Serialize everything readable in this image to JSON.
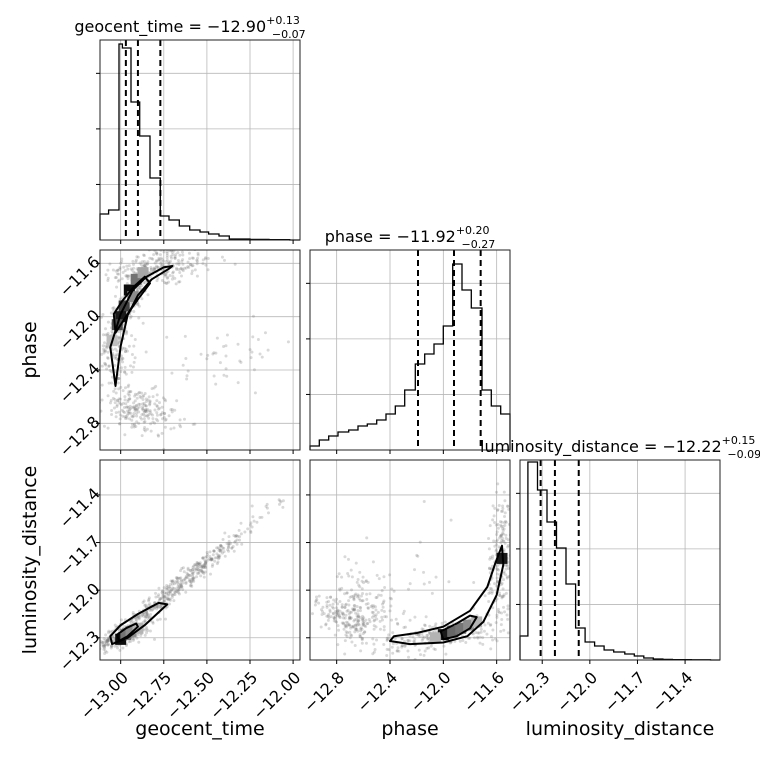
{
  "chart_data": {
    "type": "corner",
    "parameters": [
      "geocent_time",
      "phase",
      "luminosity_distance"
    ],
    "axis_labels": {
      "geocent_time": "geocent_time",
      "phase": "phase",
      "luminosity_distance": "luminosity_distance"
    },
    "titles": [
      {
        "param": "geocent_time",
        "prefix": "geocent_time = ",
        "median": "−12.90",
        "plus": "+0.13",
        "minus": "−0.07"
      },
      {
        "param": "phase",
        "prefix": "phase = ",
        "median": "−11.92",
        "plus": "+0.20",
        "minus": "−0.27"
      },
      {
        "param": "luminosity_distance",
        "prefix": "luminosity_distance = ",
        "median": "−12.22",
        "plus": "+0.15",
        "minus": "−0.09"
      }
    ],
    "ranges": {
      "geocent_time": [
        -13.12,
        -11.96
      ],
      "phase": [
        -13.0,
        -11.5
      ],
      "luminosity_distance": [
        -12.44,
        -11.18
      ]
    },
    "ticks": {
      "geocent_time": {
        "values": [
          -13.0,
          -12.75,
          -12.5,
          -12.25,
          -12.0
        ],
        "labels": [
          "−13.00",
          "−12.75",
          "−12.50",
          "−12.25",
          "−12.00"
        ]
      },
      "phase": {
        "values": [
          -12.8,
          -12.4,
          -12.0,
          -11.6
        ],
        "labels": [
          "−12.8",
          "−12.4",
          "−12.0",
          "−11.6"
        ]
      },
      "luminosity_distance": {
        "values": [
          -12.3,
          -12.0,
          -11.7,
          -11.4
        ],
        "labels": [
          "−12.3",
          "−12.0",
          "−11.7",
          "−11.4"
        ]
      }
    },
    "quantiles": {
      "geocent_time": [
        -12.97,
        -12.9,
        -12.77
      ],
      "phase": [
        -12.19,
        -11.92,
        -11.72
      ],
      "luminosity_distance": [
        -12.31,
        -12.22,
        -12.07
      ]
    },
    "histograms": {
      "geocent_time": {
        "edges": [
          -13.12,
          -13.07,
          -13.01,
          -12.99,
          -12.94,
          -12.89,
          -12.83,
          -12.77,
          -12.72,
          -12.66,
          -12.6,
          -12.54,
          -12.49,
          -12.43,
          -12.37,
          -12.31,
          -12.25,
          -12.2,
          -12.14,
          -12.08,
          -12.02,
          -11.96
        ],
        "counts": [
          0.13,
          0.15,
          0.98,
          0.96,
          0.69,
          0.52,
          0.31,
          0.12,
          0.1,
          0.07,
          0.05,
          0.04,
          0.03,
          0.02,
          0.005,
          0.005,
          0.003,
          0.003,
          0.002,
          0.002,
          0
        ]
      },
      "phase": {
        "edges": [
          -13.0,
          -12.93,
          -12.86,
          -12.79,
          -12.71,
          -12.64,
          -12.57,
          -12.5,
          -12.43,
          -12.36,
          -12.29,
          -12.21,
          -12.14,
          -12.07,
          -12.0,
          -11.93,
          -11.86,
          -11.79,
          -11.71,
          -11.64,
          -11.57,
          -11.5
        ],
        "counts": [
          0.02,
          0.05,
          0.07,
          0.09,
          0.1,
          0.12,
          0.13,
          0.15,
          0.18,
          0.22,
          0.3,
          0.43,
          0.48,
          0.53,
          0.62,
          0.93,
          0.8,
          0.71,
          0.3,
          0.22,
          0.18
        ]
      },
      "luminosity_distance": {
        "edges": [
          -12.44,
          -12.39,
          -12.33,
          -12.27,
          -12.21,
          -12.15,
          -12.09,
          -12.03,
          -11.97,
          -11.91,
          -11.85,
          -11.78,
          -11.72,
          -11.66,
          -11.6,
          -11.54,
          -11.48,
          -11.42,
          -11.36,
          -11.3,
          -11.24,
          -11.18
        ],
        "counts": [
          0.12,
          0.99,
          0.85,
          0.69,
          0.56,
          0.38,
          0.16,
          0.09,
          0.07,
          0.05,
          0.04,
          0.03,
          0.02,
          0.01,
          0.005,
          0.003,
          0.002,
          0.002,
          0.001,
          0.001,
          0
        ]
      }
    },
    "mcmc_clouds": {
      "phase_vs_geocent_time": [
        {
          "center": [
            -12.78,
            -11.63
          ],
          "spread": [
            0.16,
            0.08
          ],
          "n": 260,
          "corr": 0.35
        },
        {
          "center": [
            -12.95,
            -11.9
          ],
          "spread": [
            0.06,
            0.15
          ],
          "n": 200,
          "corr": 0.85
        },
        {
          "center": [
            -13.02,
            -12.25
          ],
          "spread": [
            0.05,
            0.15
          ],
          "n": 130,
          "corr": 0.0
        },
        {
          "center": [
            -12.9,
            -12.7
          ],
          "spread": [
            0.11,
            0.09
          ],
          "n": 230,
          "corr": -0.35
        },
        {
          "center": [
            -12.45,
            -12.3
          ],
          "spread": [
            0.25,
            0.15
          ],
          "n": 45,
          "corr": 0.5
        }
      ],
      "luminosity_distance_vs_geocent_time": [
        {
          "center": [
            -12.7,
            -12.0
          ],
          "spread": [
            0.28,
            0.25
          ],
          "n": 520,
          "corr": 0.99
        },
        {
          "center": [
            -12.97,
            -12.28
          ],
          "spread": [
            0.08,
            0.05
          ],
          "n": 200,
          "corr": 0.7
        }
      ],
      "luminosity_distance_vs_phase": [
        {
          "center": [
            -12.6,
            -12.1
          ],
          "spread": [
            0.12,
            0.12
          ],
          "n": 170,
          "corr": -0.1
        },
        {
          "center": [
            -12.75,
            -12.18
          ],
          "spread": [
            0.1,
            0.07
          ],
          "n": 130,
          "corr": -0.6
        },
        {
          "center": [
            -12.0,
            -12.28
          ],
          "spread": [
            0.22,
            0.05
          ],
          "n": 220,
          "corr": 0.5
        },
        {
          "center": [
            -11.57,
            -11.8
          ],
          "spread": [
            0.05,
            0.22
          ],
          "n": 200,
          "corr": 0.3
        },
        {
          "center": [
            -12.35,
            -12.0
          ],
          "spread": [
            0.3,
            0.2
          ],
          "n": 40,
          "corr": 0.0
        }
      ]
    },
    "density_cells": {
      "phase_vs_geocent_time": [
        {
          "x": -12.95,
          "y": -11.8,
          "level": 0.95
        },
        {
          "x": -12.98,
          "y": -11.92,
          "level": 0.75
        },
        {
          "x": -13.0,
          "y": -12.0,
          "level": 0.9
        },
        {
          "x": -13.02,
          "y": -12.06,
          "level": 0.7
        },
        {
          "x": -12.91,
          "y": -11.72,
          "level": 0.55
        },
        {
          "x": -12.87,
          "y": -11.67,
          "level": 0.35
        },
        {
          "x": -12.93,
          "y": -11.85,
          "level": 0.45
        },
        {
          "x": -13.05,
          "y": -12.18,
          "level": 0.25
        }
      ],
      "luminosity_distance_vs_geocent_time": [
        {
          "x": -13.0,
          "y": -12.31,
          "level": 0.95
        },
        {
          "x": -12.97,
          "y": -12.28,
          "level": 0.55
        },
        {
          "x": -12.94,
          "y": -12.26,
          "level": 0.45
        },
        {
          "x": -12.9,
          "y": -12.24,
          "level": 0.3
        }
      ],
      "luminosity_distance_vs_phase": [
        {
          "x": -12.0,
          "y": -12.28,
          "level": 0.9
        },
        {
          "x": -11.93,
          "y": -12.26,
          "level": 0.6
        },
        {
          "x": -11.87,
          "y": -12.24,
          "level": 0.55
        },
        {
          "x": -11.81,
          "y": -12.22,
          "level": 0.45
        },
        {
          "x": -12.06,
          "y": -12.3,
          "level": 0.3
        },
        {
          "x": -11.75,
          "y": -12.2,
          "level": 0.3
        },
        {
          "x": -11.56,
          "y": -11.8,
          "level": 0.9
        }
      ]
    },
    "contours": {
      "phase_vs_geocent_time": [
        [
          [
            -13.03,
            -12.52
          ],
          [
            -13.06,
            -12.23
          ],
          [
            -13.0,
            -11.98
          ],
          [
            -12.93,
            -11.8
          ],
          [
            -12.85,
            -11.7
          ],
          [
            -12.75,
            -11.63
          ],
          [
            -12.7,
            -11.62
          ],
          [
            -12.72,
            -11.64
          ],
          [
            -12.82,
            -11.72
          ],
          [
            -12.9,
            -11.84
          ],
          [
            -12.96,
            -11.99
          ],
          [
            -13.0,
            -12.22
          ],
          [
            -13.03,
            -12.52
          ]
        ],
        [
          [
            -13.03,
            -12.12
          ],
          [
            -13.04,
            -11.98
          ],
          [
            -12.99,
            -11.88
          ],
          [
            -12.92,
            -11.77
          ],
          [
            -12.86,
            -11.7
          ],
          [
            -12.83,
            -11.75
          ],
          [
            -12.9,
            -11.87
          ],
          [
            -12.96,
            -11.98
          ],
          [
            -13.03,
            -12.12
          ]
        ]
      ],
      "luminosity_distance_vs_geocent_time": [
        [
          [
            -13.05,
            -12.34
          ],
          [
            -13.06,
            -12.29
          ],
          [
            -13.0,
            -12.22
          ],
          [
            -12.9,
            -12.15
          ],
          [
            -12.78,
            -12.08
          ],
          [
            -12.73,
            -12.09
          ],
          [
            -12.86,
            -12.22
          ],
          [
            -12.96,
            -12.3
          ],
          [
            -13.05,
            -12.34
          ]
        ],
        [
          [
            -13.01,
            -12.32
          ],
          [
            -13.02,
            -12.28
          ],
          [
            -12.97,
            -12.24
          ],
          [
            -12.91,
            -12.21
          ],
          [
            -12.9,
            -12.23
          ],
          [
            -12.96,
            -12.29
          ],
          [
            -13.01,
            -12.32
          ]
        ]
      ],
      "luminosity_distance_vs_phase": [
        [
          [
            -12.4,
            -12.32
          ],
          [
            -12.37,
            -12.29
          ],
          [
            -12.2,
            -12.27
          ],
          [
            -12.0,
            -12.23
          ],
          [
            -11.8,
            -12.13
          ],
          [
            -11.67,
            -11.98
          ],
          [
            -11.61,
            -11.83
          ],
          [
            -11.56,
            -11.72
          ],
          [
            -11.55,
            -11.84
          ],
          [
            -11.6,
            -12.03
          ],
          [
            -11.7,
            -12.2
          ],
          [
            -11.82,
            -12.29
          ],
          [
            -12.0,
            -12.33
          ],
          [
            -12.25,
            -12.34
          ],
          [
            -12.4,
            -12.32
          ]
        ],
        [
          [
            -12.0,
            -12.31
          ],
          [
            -12.02,
            -12.26
          ],
          [
            -11.9,
            -12.21
          ],
          [
            -11.8,
            -12.16
          ],
          [
            -11.75,
            -12.17
          ],
          [
            -11.8,
            -12.24
          ],
          [
            -11.9,
            -12.29
          ],
          [
            -12.0,
            -12.31
          ]
        ]
      ]
    },
    "grid": true
  }
}
